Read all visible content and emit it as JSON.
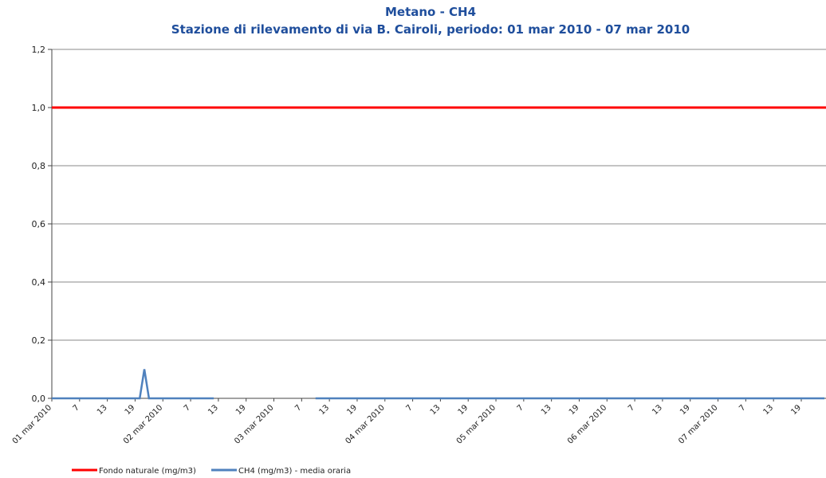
{
  "chart_data": {
    "type": "line",
    "title": "Metano - CH4",
    "subtitle": "Stazione di rilevamento di via B. Cairoli, periodo: 01 mar 2010 - 07 mar 2010",
    "categories": [
      "01 mar 2010",
      null,
      null,
      null,
      null,
      null,
      "7",
      null,
      null,
      null,
      null,
      null,
      "13",
      null,
      null,
      null,
      null,
      null,
      "19",
      null,
      null,
      null,
      null,
      null,
      "02 mar 2010",
      null,
      null,
      null,
      null,
      null,
      "7",
      null,
      null,
      null,
      null,
      null,
      "13",
      null,
      null,
      null,
      null,
      null,
      "19",
      null,
      null,
      null,
      null,
      null,
      "03 mar 2010",
      null,
      null,
      null,
      null,
      null,
      "7",
      null,
      null,
      null,
      null,
      null,
      "13",
      null,
      null,
      null,
      null,
      null,
      "19",
      null,
      null,
      null,
      null,
      null,
      "04 mar 2010",
      null,
      null,
      null,
      null,
      null,
      "7",
      null,
      null,
      null,
      null,
      null,
      "13",
      null,
      null,
      null,
      null,
      null,
      "19",
      null,
      null,
      null,
      null,
      null,
      "05 mar 2010",
      null,
      null,
      null,
      null,
      null,
      "7",
      null,
      null,
      null,
      null,
      null,
      "13",
      null,
      null,
      null,
      null,
      null,
      "19",
      null,
      null,
      null,
      null,
      null,
      "06 mar 2010",
      null,
      null,
      null,
      null,
      null,
      "7",
      null,
      null,
      null,
      null,
      null,
      "13",
      null,
      null,
      null,
      null,
      null,
      "19",
      null,
      null,
      null,
      null,
      null,
      "07 mar 2010",
      null,
      null,
      null,
      null,
      null,
      "7",
      null,
      null,
      null,
      null,
      null,
      "13",
      null,
      null,
      null,
      null,
      null,
      "19",
      null,
      null,
      null,
      null,
      null
    ],
    "series": [
      {
        "name": "CH4 (mg/m3)  - media oraria",
        "color": "#4f81bd",
        "values": [
          0,
          0,
          0,
          0,
          0,
          0,
          0,
          0,
          0,
          0,
          0,
          0,
          0,
          0,
          0,
          0,
          0,
          0,
          0,
          0,
          0.1,
          0,
          0,
          0,
          0,
          0,
          0,
          0,
          0,
          0,
          0,
          0,
          0,
          0,
          0,
          0,
          null,
          null,
          null,
          null,
          null,
          null,
          null,
          null,
          null,
          null,
          null,
          null,
          null,
          null,
          null,
          null,
          null,
          null,
          null,
          null,
          null,
          0,
          0,
          0,
          0,
          0,
          0,
          0,
          0,
          0,
          0,
          0,
          0,
          0,
          0,
          0,
          0,
          0,
          0,
          0,
          0,
          0,
          0,
          0,
          0,
          0,
          0,
          0,
          0,
          0,
          0,
          0,
          0,
          0,
          0,
          0,
          0,
          0,
          0,
          0,
          0,
          0,
          0,
          0,
          0,
          0,
          0,
          0,
          0,
          0,
          0,
          0,
          0,
          0,
          0,
          0,
          0,
          0,
          0,
          0,
          0,
          0,
          0,
          0,
          0,
          0,
          0,
          0,
          0,
          0,
          0,
          0,
          0,
          0,
          0,
          0,
          0,
          0,
          0,
          0,
          0,
          0,
          0,
          0,
          0,
          0,
          0,
          0,
          0,
          0,
          0,
          0,
          0,
          0,
          0,
          0,
          0,
          0,
          0,
          0,
          0,
          0,
          0,
          0,
          0,
          0,
          0,
          0,
          0,
          0,
          0,
          0
        ]
      }
    ],
    "reference_lines": [
      {
        "name": "Fondo naturale  (mg/m3)",
        "value": 1,
        "color": "#ff0000"
      }
    ],
    "ylim": [
      0,
      1.2
    ],
    "yticks": [
      {
        "value": 0,
        "label": "0,0"
      },
      {
        "value": 0.2,
        "label": "0,2"
      },
      {
        "value": 0.4,
        "label": "0,4"
      },
      {
        "value": 0.6,
        "label": "0,6"
      },
      {
        "value": 0.8,
        "label": "0,8"
      },
      {
        "value": 1,
        "label": "1,0"
      },
      {
        "value": 1.2,
        "label": "1,2"
      }
    ],
    "grid": true
  }
}
